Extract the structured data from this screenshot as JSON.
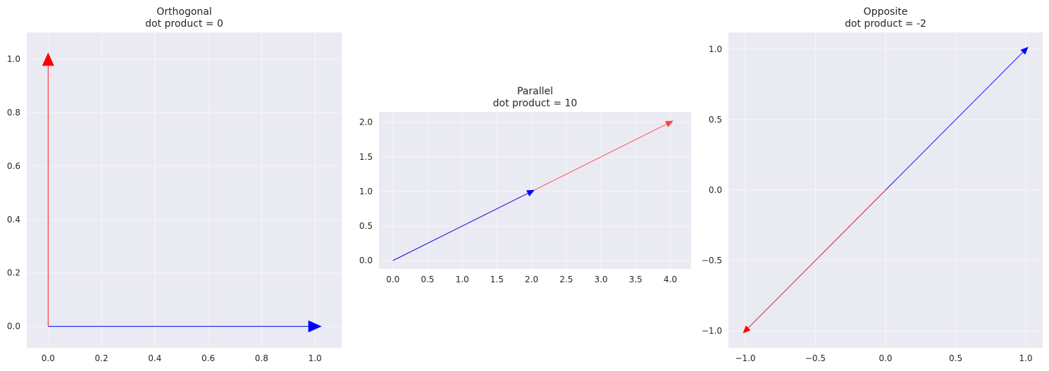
{
  "chart_data": [
    {
      "type": "vector",
      "title": [
        "Orthogonal",
        "dot product = 0"
      ],
      "xlabel": "",
      "ylabel": "",
      "xlim": [
        -0.08,
        1.1
      ],
      "ylim": [
        -0.08,
        1.1
      ],
      "xticks": [
        0.0,
        0.2,
        0.4,
        0.6,
        0.8,
        1.0
      ],
      "xtick_labels": [
        "0.0",
        "0.2",
        "0.4",
        "0.6",
        "0.8",
        "1.0"
      ],
      "yticks": [
        0.0,
        0.2,
        0.4,
        0.6,
        0.8,
        1.0
      ],
      "ytick_labels": [
        "0.0",
        "0.2",
        "0.4",
        "0.6",
        "0.8",
        "1.0"
      ],
      "grid": true,
      "vectors": [
        {
          "from": [
            0,
            0
          ],
          "to": [
            1,
            0
          ],
          "color": "#0000ff"
        },
        {
          "from": [
            0,
            0
          ],
          "to": [
            0,
            1
          ],
          "color": "#ff0000"
        }
      ]
    },
    {
      "type": "vector",
      "title": [
        "Parallel",
        "dot product = 10"
      ],
      "xlabel": "",
      "ylabel": "",
      "xlim": [
        -0.2,
        4.3
      ],
      "ylim": [
        -0.12,
        2.15
      ],
      "xticks": [
        0.0,
        0.5,
        1.0,
        1.5,
        2.0,
        2.5,
        3.0,
        3.5,
        4.0
      ],
      "xtick_labels": [
        "0.0",
        "0.5",
        "1.0",
        "1.5",
        "2.0",
        "2.5",
        "3.0",
        "3.5",
        "4.0"
      ],
      "yticks": [
        0.0,
        0.5,
        1.0,
        1.5,
        2.0
      ],
      "ytick_labels": [
        "0.0",
        "0.5",
        "1.0",
        "1.5",
        "2.0"
      ],
      "grid": true,
      "vectors": [
        {
          "from": [
            0,
            0
          ],
          "to": [
            4,
            2
          ],
          "color": "#ff4444"
        },
        {
          "from": [
            0,
            0
          ],
          "to": [
            2,
            1
          ],
          "color": "#0000ff"
        }
      ]
    },
    {
      "type": "vector",
      "title": [
        "Opposite",
        "dot product = -2"
      ],
      "xlabel": "",
      "ylabel": "",
      "xlim": [
        -1.12,
        1.12
      ],
      "ylim": [
        -1.12,
        1.12
      ],
      "xticks": [
        -1.0,
        -0.5,
        0.0,
        0.5,
        1.0
      ],
      "xtick_labels": [
        "−1.0",
        "−0.5",
        "0.0",
        "0.5",
        "1.0"
      ],
      "yticks": [
        -1.0,
        -0.5,
        0.0,
        0.5,
        1.0
      ],
      "ytick_labels": [
        "−1.0",
        "−0.5",
        "0.0",
        "0.5",
        "1.0"
      ],
      "grid": true,
      "vectors": [
        {
          "from": [
            0,
            0
          ],
          "to": [
            1,
            1
          ],
          "color": "#0000ff"
        },
        {
          "from": [
            0,
            0
          ],
          "to": [
            -1,
            -1
          ],
          "color": "#ff0000"
        }
      ]
    }
  ],
  "style": {
    "axes_bg": "#eaeaf2",
    "grid_color": "#f5f5f9",
    "text_color": "#262626"
  }
}
